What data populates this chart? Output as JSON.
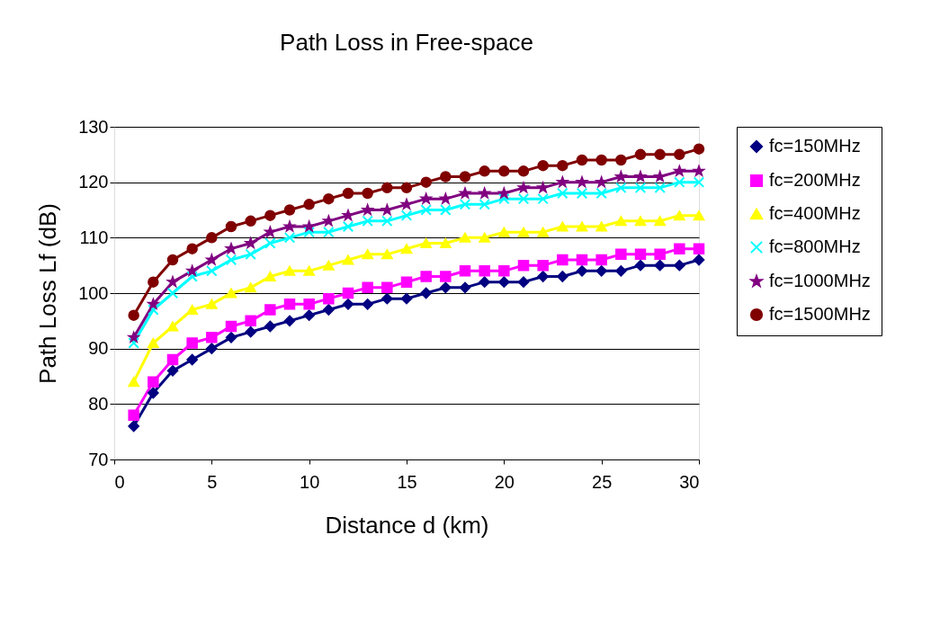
{
  "chart_data": {
    "type": "line",
    "title": "Path Loss in Free-space",
    "xlabel": "Distance d (km)",
    "ylabel": "Path Loss Lf (dB)",
    "x": [
      1,
      2,
      3,
      4,
      5,
      6,
      7,
      8,
      9,
      10,
      11,
      12,
      13,
      14,
      15,
      16,
      17,
      18,
      19,
      20,
      21,
      22,
      23,
      24,
      25,
      26,
      27,
      28,
      29,
      30
    ],
    "xlim": [
      0,
      30
    ],
    "xticks": [
      0,
      5,
      10,
      15,
      20,
      25,
      30
    ],
    "ylim": [
      70,
      130
    ],
    "yticks": [
      70,
      80,
      90,
      100,
      110,
      120,
      130
    ],
    "grid": "y",
    "legend": "right",
    "line_style": "solid",
    "series": [
      {
        "name": "fc=150MHz",
        "color": "#000080",
        "marker": "diamond",
        "values": [
          76,
          82,
          86,
          88,
          90,
          92,
          93,
          94,
          95,
          96,
          97,
          98,
          98,
          99,
          99,
          100,
          101,
          101,
          102,
          102,
          102,
          103,
          103,
          104,
          104,
          104,
          105,
          105,
          105,
          106
        ]
      },
      {
        "name": "fc=200MHz",
        "color": "#ff00ff",
        "marker": "square",
        "values": [
          78,
          84,
          88,
          91,
          92,
          94,
          95,
          97,
          98,
          98,
          99,
          100,
          101,
          101,
          102,
          103,
          103,
          104,
          104,
          104,
          105,
          105,
          106,
          106,
          106,
          107,
          107,
          107,
          108,
          108
        ]
      },
      {
        "name": "fc=400MHz",
        "color": "#ffff00",
        "marker": "triangle",
        "values": [
          84,
          91,
          94,
          97,
          98,
          100,
          101,
          103,
          104,
          104,
          105,
          106,
          107,
          107,
          108,
          109,
          109,
          110,
          110,
          111,
          111,
          111,
          112,
          112,
          112,
          113,
          113,
          113,
          114,
          114
        ]
      },
      {
        "name": "fc=800MHz",
        "color": "#00ffff",
        "marker": "cross",
        "values": [
          91,
          97,
          100,
          103,
          104,
          106,
          107,
          109,
          110,
          111,
          111,
          112,
          113,
          113,
          114,
          115,
          115,
          116,
          116,
          117,
          117,
          117,
          118,
          118,
          118,
          119,
          119,
          119,
          120,
          120
        ]
      },
      {
        "name": "fc=1000MHz",
        "color": "#800080",
        "marker": "star",
        "values": [
          92,
          98,
          102,
          104,
          106,
          108,
          109,
          111,
          112,
          112,
          113,
          114,
          115,
          115,
          116,
          117,
          117,
          118,
          118,
          118,
          119,
          119,
          120,
          120,
          120,
          121,
          121,
          121,
          122,
          122
        ]
      },
      {
        "name": "fc=1500MHz",
        "color": "#800000",
        "marker": "circle",
        "values": [
          96,
          102,
          106,
          108,
          110,
          112,
          113,
          114,
          115,
          116,
          117,
          118,
          118,
          119,
          119,
          120,
          121,
          121,
          122,
          122,
          122,
          123,
          123,
          124,
          124,
          124,
          125,
          125,
          125,
          126
        ]
      }
    ]
  }
}
